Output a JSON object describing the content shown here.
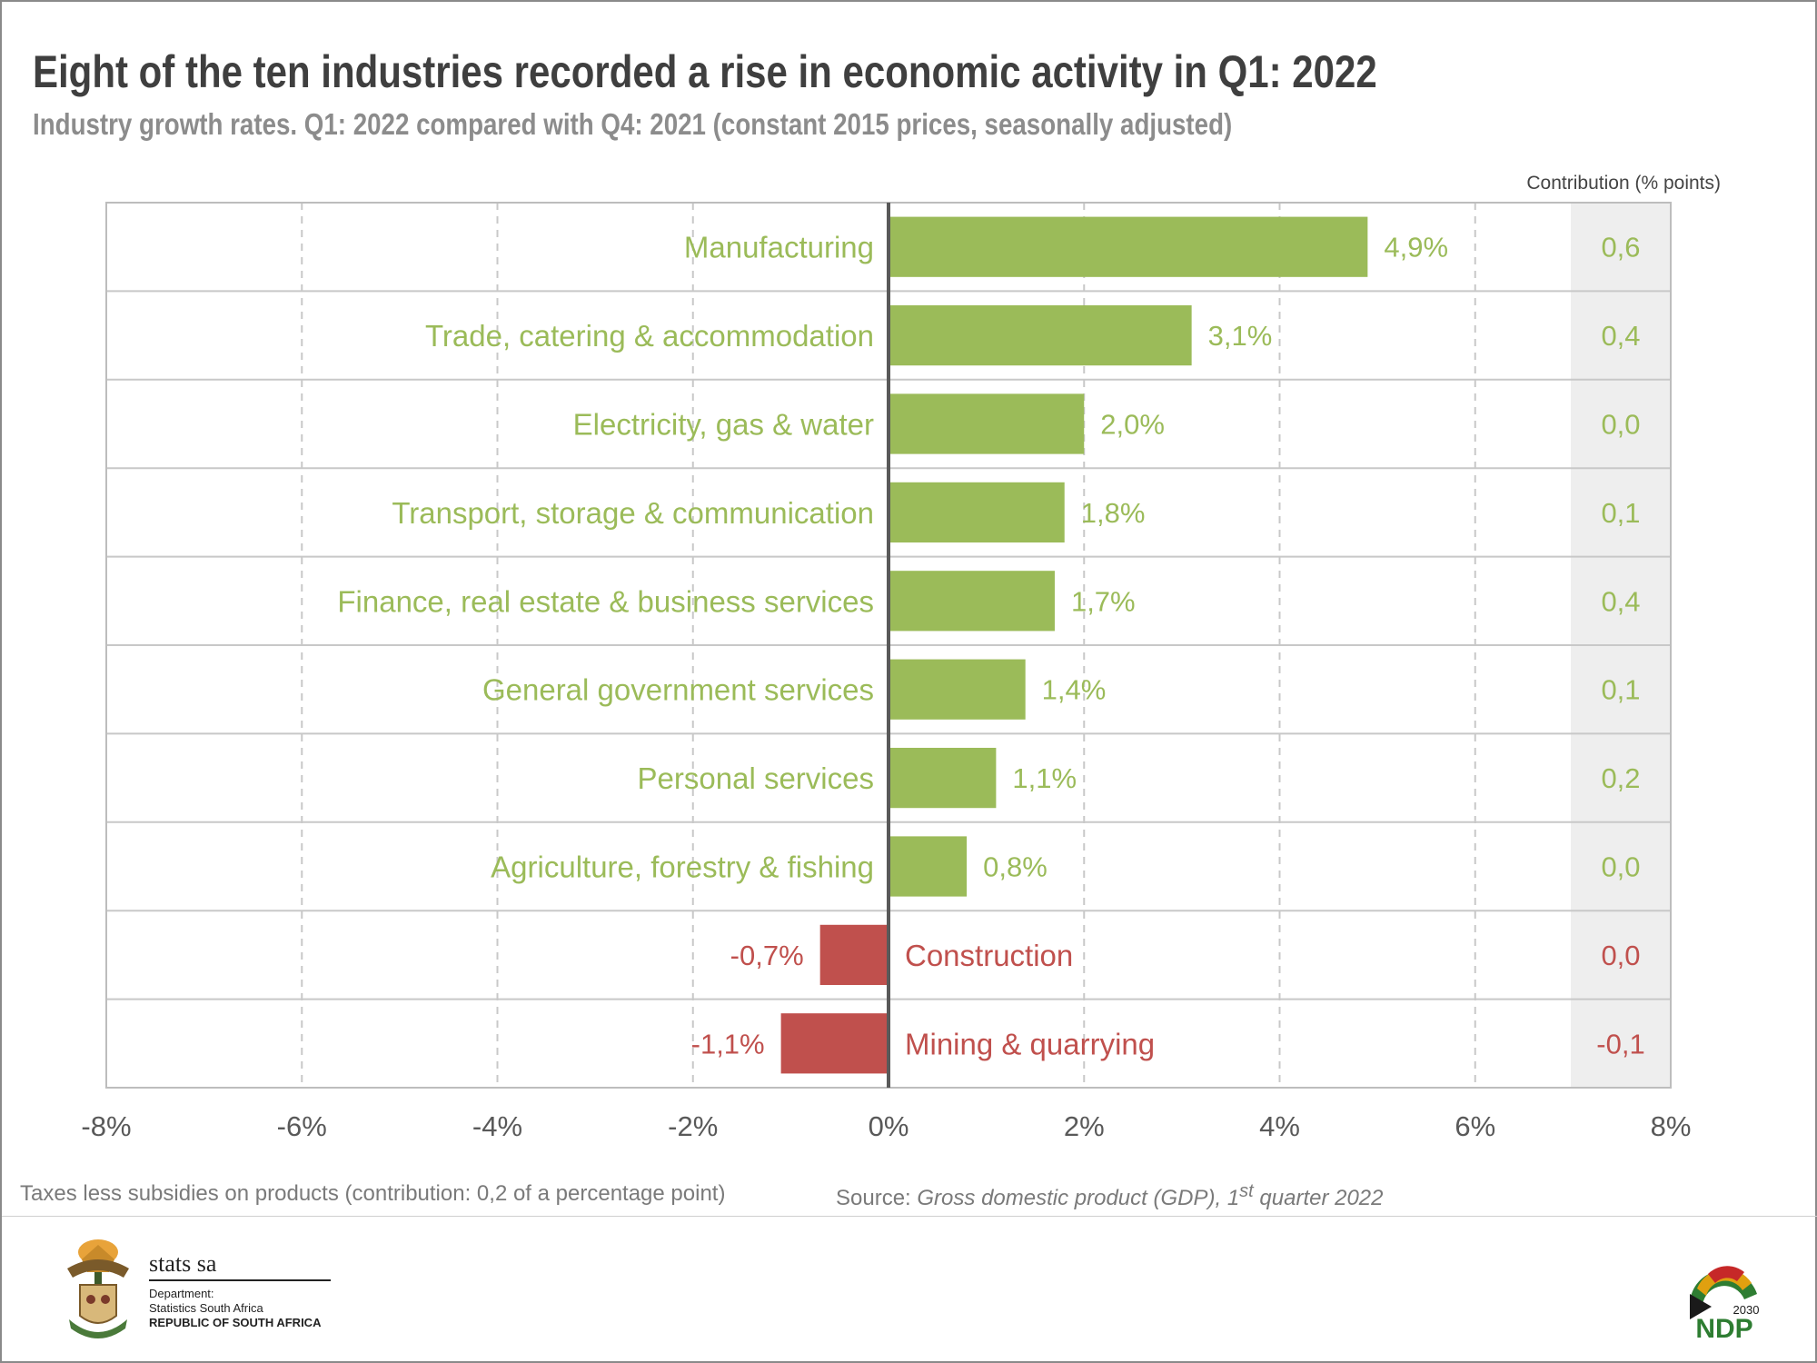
{
  "title": "Eight of the ten industries recorded a rise in economic activity in Q1: 2022",
  "subtitle": "Industry growth rates. Q1: 2022 compared with Q4: 2021 (constant 2015 prices, seasonally adjusted)",
  "colors": {
    "positive": "#9bbb59",
    "negative": "#c0504d",
    "axis": "#595959",
    "grid": "#c8c8c8",
    "contrib_bg": "#eeeeee"
  },
  "chart_data": {
    "type": "bar",
    "orientation": "horizontal",
    "categories": [
      "Manufacturing",
      "Trade, catering & accommodation",
      "Electricity, gas & water",
      "Transport, storage & communication",
      "Finance, real estate & business services",
      "General government services",
      "Personal services",
      "Agriculture, forestry & fishing",
      "Construction",
      "Mining & quarrying"
    ],
    "values": [
      4.9,
      3.1,
      2.0,
      1.8,
      1.7,
      1.4,
      1.1,
      0.8,
      -0.7,
      -1.1
    ],
    "value_labels": [
      "4,9%",
      "3,1%",
      "2,0%",
      "1,8%",
      "1,7%",
      "1,4%",
      "1,1%",
      "0,8%",
      "-0,7%",
      "-1,1%"
    ],
    "contribution_header": "Contribution (% points)",
    "contributions": [
      "0,6",
      "0,4",
      "0,0",
      "0,1",
      "0,4",
      "0,1",
      "0,2",
      "0,0",
      "0,0",
      "-0,1"
    ],
    "xlim": [
      -8,
      8
    ],
    "xticks": [
      -8,
      -6,
      -4,
      -2,
      0,
      2,
      4,
      6,
      8
    ],
    "xtick_labels": [
      "-8%",
      "-6%",
      "-4%",
      "-2%",
      "0%",
      "2%",
      "4%",
      "6%",
      "8%"
    ],
    "grid": "vertical dashed",
    "title": "Eight of the ten industries recorded a rise in economic activity in Q1: 2022",
    "xlabel": "",
    "ylabel": ""
  },
  "footnote": "Taxes less subsidies on products (contribution: 0,2 of a percentage point)",
  "source": {
    "prefix": "Source: ",
    "title": "Gross domestic product (GDP), 1",
    "superscript": "st",
    "suffix": " quarter 2022"
  },
  "logo": {
    "name": "stats sa",
    "dept_line1": "Department:",
    "dept_line2": "Statistics South Africa",
    "dept_line3": "REPUBLIC OF SOUTH AFRICA"
  },
  "ndp_logo": {
    "text": "NDP",
    "year": "2030"
  }
}
